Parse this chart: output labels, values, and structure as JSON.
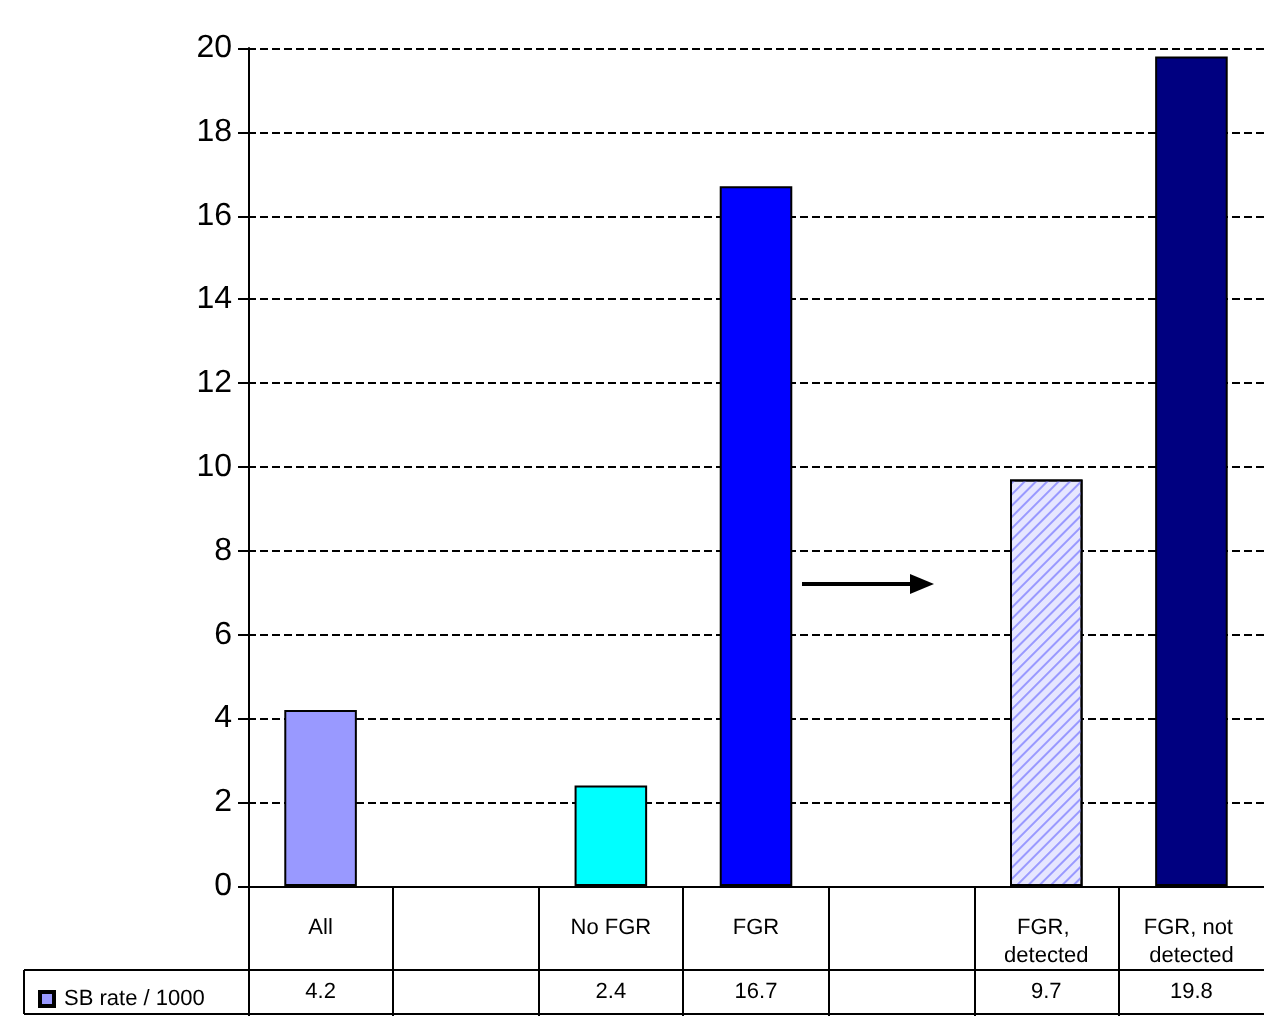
{
  "chart_data": {
    "type": "bar",
    "categories": [
      "All",
      null,
      "No FGR",
      "FGR",
      null,
      "FGR, detected",
      "FGR, not detected"
    ],
    "series": [
      {
        "name": "SB rate / 1000",
        "color": "#9999ff",
        "colors": [
          "#9999ff",
          null,
          "#00ffff",
          "#0000ff",
          null,
          "#e6e6ff",
          "#000080"
        ],
        "values": [
          4.2,
          null,
          2.4,
          16.7,
          null,
          9.7,
          19.8
        ]
      }
    ],
    "ylim": [
      0,
      20
    ],
    "yticks": [
      0,
      2,
      4,
      6,
      8,
      10,
      12,
      14,
      16,
      18,
      20
    ],
    "grid": "y",
    "legend": "bottom left",
    "data_labels": true
  }
}
